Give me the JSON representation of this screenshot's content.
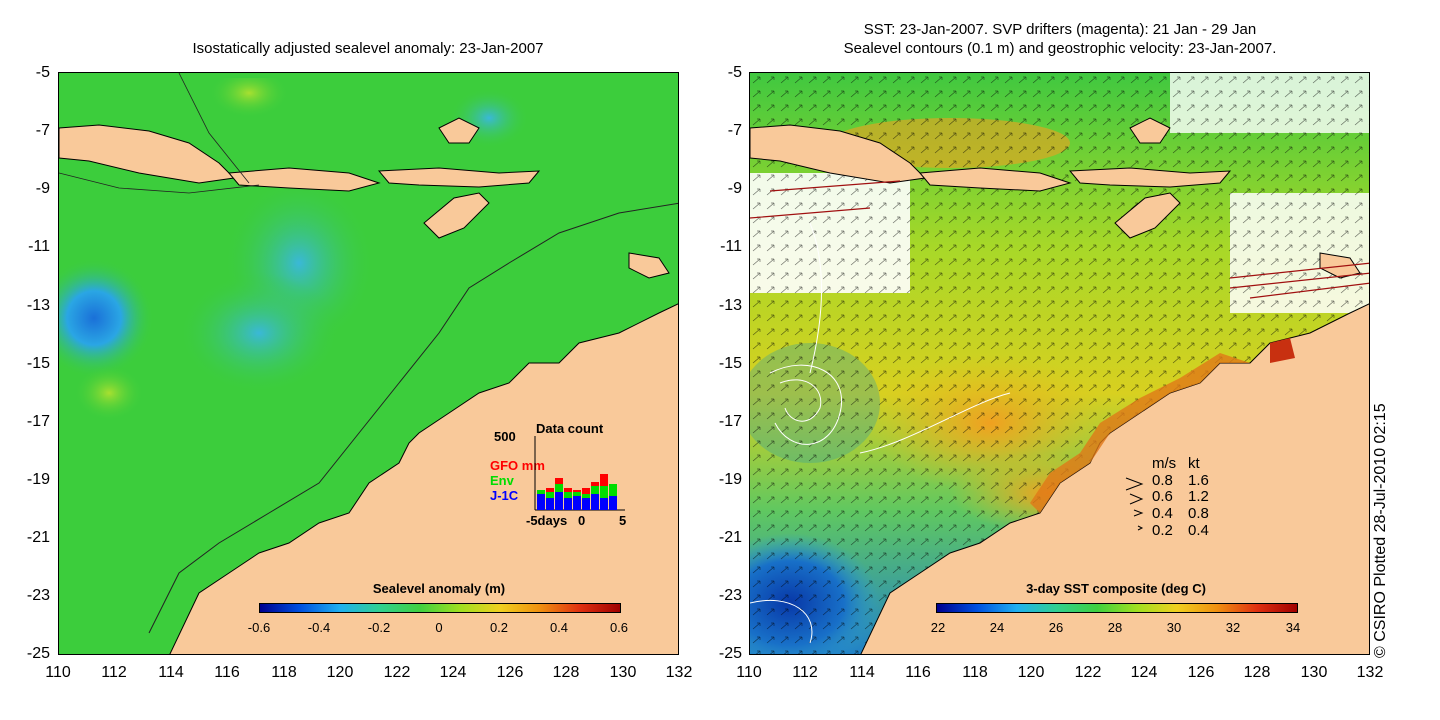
{
  "left": {
    "title": "Isostatically adjusted sealevel anomaly: 23-Jan-2007",
    "colorbar": {
      "title": "Sealevel anomaly (m)",
      "ticks": [
        "-0.6",
        "-0.4",
        "-0.2",
        "0",
        "0.2",
        "0.4",
        "0.6"
      ],
      "range": [
        -0.6,
        0.6
      ]
    },
    "histogram": {
      "title": "Data count",
      "ymax_label": "500",
      "series": [
        {
          "name": "GFO mm",
          "color": "#ff0000"
        },
        {
          "name": "Env",
          "color": "#00dd00"
        },
        {
          "name": "J-1C",
          "color": "#0000ff"
        }
      ],
      "xlabels": [
        "-5days",
        "0",
        "5"
      ]
    }
  },
  "right": {
    "title_line1": "SST: 23-Jan-2007. SVP drifters (magenta): 21 Jan - 29 Jan",
    "title_line2": "Sealevel contours (0.1 m) and geostrophic velocity: 23-Jan-2007.",
    "colorbar": {
      "title": "3-day SST composite (deg C)",
      "ticks": [
        "22",
        "24",
        "26",
        "28",
        "30",
        "32",
        "34"
      ],
      "range": [
        22,
        34
      ]
    },
    "velocity_legend": {
      "header_ms": "m/s",
      "header_kt": "kt",
      "rows": [
        {
          "ms": "0.8",
          "kt": "1.6"
        },
        {
          "ms": "0.6",
          "kt": "1.2"
        },
        {
          "ms": "0.4",
          "kt": "0.8"
        },
        {
          "ms": "0.2",
          "kt": "0.4"
        }
      ]
    }
  },
  "axes": {
    "lat_ticks": [
      "-5",
      "-7",
      "-9",
      "-11",
      "-13",
      "-15",
      "-17",
      "-19",
      "-21",
      "-23",
      "-25"
    ],
    "lon_ticks": [
      "110",
      "112",
      "114",
      "116",
      "118",
      "120",
      "122",
      "124",
      "126",
      "128",
      "130",
      "132"
    ]
  },
  "credit": "© CSIRO Plotted 28-Jul-2010 02:15",
  "colors": {
    "land": "#f9c99a",
    "ocean_green": "#3ccd3c",
    "ocean_sla_low": "#2aa0e0",
    "sst_yellow": "#e8d020",
    "sst_orange": "#f0a020",
    "sst_blue": "#1060c0"
  }
}
